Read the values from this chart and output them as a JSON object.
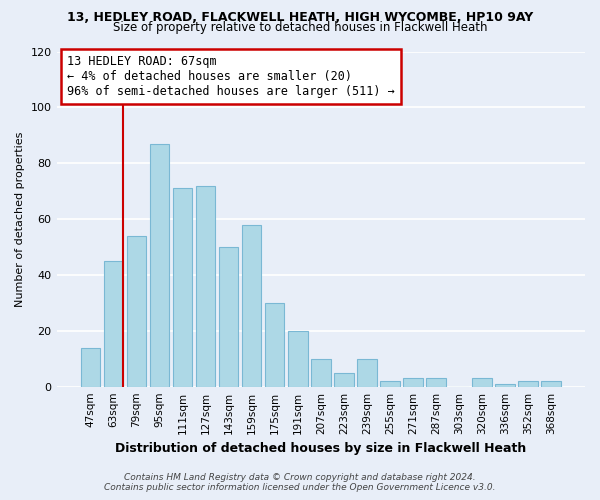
{
  "title1": "13, HEDLEY ROAD, FLACKWELL HEATH, HIGH WYCOMBE, HP10 9AY",
  "title2": "Size of property relative to detached houses in Flackwell Heath",
  "xlabel": "Distribution of detached houses by size in Flackwell Heath",
  "ylabel": "Number of detached properties",
  "bin_labels": [
    "47sqm",
    "63sqm",
    "79sqm",
    "95sqm",
    "111sqm",
    "127sqm",
    "143sqm",
    "159sqm",
    "175sqm",
    "191sqm",
    "207sqm",
    "223sqm",
    "239sqm",
    "255sqm",
    "271sqm",
    "287sqm",
    "303sqm",
    "320sqm",
    "336sqm",
    "352sqm",
    "368sqm"
  ],
  "bar_values": [
    14,
    45,
    54,
    87,
    71,
    72,
    50,
    58,
    30,
    20,
    10,
    5,
    10,
    2,
    3,
    3,
    0,
    3,
    1,
    2,
    2
  ],
  "bar_color": "#add8e6",
  "bar_edge_color": "#7ab8d4",
  "highlight_line_color": "#cc0000",
  "ylim": [
    0,
    120
  ],
  "yticks": [
    0,
    20,
    40,
    60,
    80,
    100,
    120
  ],
  "annotation_title": "13 HEDLEY ROAD: 67sqm",
  "annotation_line1": "← 4% of detached houses are smaller (20)",
  "annotation_line2": "96% of semi-detached houses are larger (511) →",
  "annotation_box_color": "#ffffff",
  "annotation_box_edge_color": "#cc0000",
  "footer1": "Contains HM Land Registry data © Crown copyright and database right 2024.",
  "footer2": "Contains public sector information licensed under the Open Government Licence v3.0.",
  "background_color": "#e8eef8",
  "grid_color": "#ffffff",
  "red_line_bar_index": 1
}
